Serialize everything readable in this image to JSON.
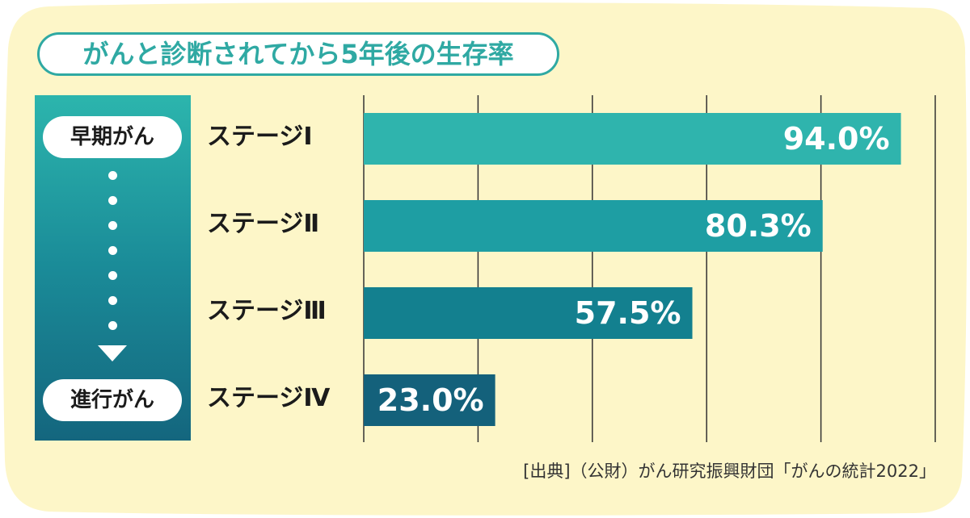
{
  "title": "がんと診断されてから5年後の生存率",
  "stage_axis": {
    "top_label": "早期がん",
    "bottom_label": "進行がん"
  },
  "chart_data": {
    "type": "bar",
    "orientation": "horizontal",
    "title": "がんと診断されてから5年後の生存率",
    "categories": [
      "ステージⅠ",
      "ステージⅡ",
      "ステージⅢ",
      "ステージⅣ"
    ],
    "values": [
      94.0,
      80.3,
      57.5,
      23.0
    ],
    "value_labels": [
      "94.0%",
      "80.3%",
      "57.5%",
      "23.0%"
    ],
    "unit": "%",
    "xlim": [
      0,
      100
    ],
    "grid": true,
    "legend": "none",
    "colors": [
      "#2fb4ad",
      "#1e9ea3",
      "#13808f",
      "#14617b"
    ]
  },
  "colors": {
    "background": "#fdf6c8",
    "accent": "#2fa9a3",
    "gridline": "#333333"
  },
  "source": "[出典]（公財）がん研究振興財団「がんの統計2022」"
}
